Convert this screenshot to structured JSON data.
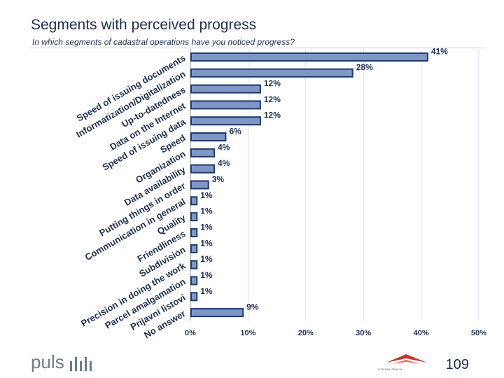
{
  "slide": {
    "title": "Segments with perceived progress",
    "subtitle": "In which segments of cadastral operations have you noticed progress?",
    "logo_text": "puls",
    "page_number": "109",
    "emblem_text": "U ISLENA ZEMLJA"
  },
  "colors": {
    "bar_fill": "#7f97c6",
    "bar_stroke": "#1f3a6b",
    "text": "#1f2f4f",
    "grid": "#dde1e8"
  },
  "chart_data": {
    "type": "bar",
    "orientation": "horizontal",
    "categories": [
      "Speed of issuing documents",
      "Informatization/Digitalization",
      "Up-to-datedness",
      "Data on the Internet",
      "Speed of issuing data",
      "Speed",
      "Organization",
      "Data availability",
      "Putting things in order",
      "Communication in general",
      "Quality",
      "Friendliness",
      "Subdivision",
      "Precision in doing the work",
      "Parcel amalgamation",
      "Prijavni listovi",
      "No answer"
    ],
    "bars": [
      {
        "value": 41,
        "label": "41%"
      },
      {
        "value": 28,
        "label": "28%"
      },
      {
        "value": 12,
        "label": "12%"
      },
      {
        "value": 12,
        "label": "12%"
      },
      {
        "value": 12,
        "label": "12%"
      },
      {
        "value": 6,
        "label": "6%"
      },
      {
        "value": 4,
        "label": "4%"
      },
      {
        "value": 4,
        "label": "4%"
      },
      {
        "value": 3,
        "label": "3%"
      },
      {
        "value": 1,
        "label": "1%"
      },
      {
        "value": 1,
        "label": "1%"
      },
      {
        "value": 1,
        "label": "1%"
      },
      {
        "value": 1,
        "label": "1%"
      },
      {
        "value": 1,
        "label": "1%"
      },
      {
        "value": 1,
        "label": "1%"
      },
      {
        "value": 1,
        "label": "1%"
      },
      {
        "value": 9,
        "label": "9%"
      }
    ],
    "x_ticks": [
      "0%",
      "10%",
      "20%",
      "30%",
      "40%",
      "50%"
    ],
    "xlim": [
      0,
      50
    ],
    "grid": true,
    "legend": "none"
  }
}
